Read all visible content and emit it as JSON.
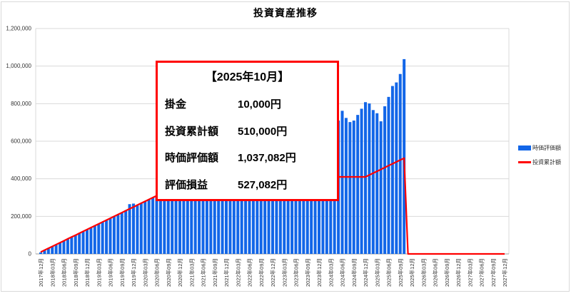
{
  "title": "投資資産推移",
  "colors": {
    "bar": "#1266e8",
    "line": "#ff0000",
    "grid": "#d9d9d9",
    "axis": "#9e9e9e",
    "tick_text": "#333333",
    "frame": "#d9d9d9",
    "box_border": "#ff0000"
  },
  "legend": [
    {
      "label": "時価評価額",
      "type": "bar"
    },
    {
      "label": "投資累計額",
      "type": "line"
    }
  ],
  "annotation": {
    "title": "【2025年10月】",
    "rows": [
      {
        "label": "掛金",
        "value": "10,000円"
      },
      {
        "label": "投資累計額",
        "value": "510,000円"
      },
      {
        "label": "時価評価額",
        "value": "1,037,082円"
      },
      {
        "label": "評価損益",
        "value": "527,082円"
      }
    ]
  },
  "chart_data": {
    "type": "combo",
    "title": "投資資産推移",
    "x_start": "2017-12",
    "x_end": "2027-12",
    "x_interval": "monthly",
    "tick_every_n_months": 3,
    "x_tick_labels": [
      "2017年12月",
      "2018年03月",
      "2018年06月",
      "2018年09月",
      "2018年12月",
      "2019年03月",
      "2019年06月",
      "2019年09月",
      "2019年12月",
      "2020年03月",
      "2020年06月",
      "2020年09月",
      "2020年12月",
      "2021年03月",
      "2021年06月",
      "2021年09月",
      "2021年12月",
      "2022年03月",
      "2022年06月",
      "2022年09月",
      "2022年12月",
      "2023年03月",
      "2023年06月",
      "2023年09月",
      "2023年12月",
      "2024年03月",
      "2024年06月",
      "2024年09月",
      "2024年12月",
      "2025年03月",
      "2025年06月",
      "2025年09月",
      "2025年12月",
      "2026年03月",
      "2026年06月",
      "2026年09月",
      "2026年12月",
      "2027年03月",
      "2027年06月",
      "2027年09月",
      "2027年12月"
    ],
    "ylim": [
      0,
      1200000
    ],
    "y_ticks": [
      "0",
      "200,000",
      "400,000",
      "600,000",
      "800,000",
      "1,000,000",
      "1,200,000"
    ],
    "grid": true,
    "legend_position": "right",
    "series": [
      {
        "name": "時価評価額",
        "type": "bar",
        "color": "#1266e8",
        "values": [
          8000,
          19000,
          30000,
          41000,
          50000,
          61000,
          70000,
          79000,
          91000,
          100000,
          111000,
          119000,
          131000,
          140000,
          149000,
          161000,
          170000,
          179000,
          191000,
          199000,
          210000,
          219000,
          232000,
          265000,
          268000,
          258000,
          270000,
          281000,
          290000,
          299000,
          311000,
          322000,
          330000,
          341000,
          350000,
          360000,
          371000,
          380000,
          391000,
          400000,
          412000,
          420000,
          428000,
          436000,
          444000,
          452000,
          460000,
          455000,
          462000,
          470000,
          478000,
          486000,
          480000,
          488000,
          496000,
          504000,
          512000,
          520000,
          515000,
          523000,
          531000,
          539000,
          547000,
          555000,
          563000,
          571000,
          579000,
          587000,
          595000,
          603000,
          615000,
          628000,
          645000,
          660000,
          690000,
          695000,
          717000,
          710000,
          762000,
          724000,
          702000,
          710000,
          740000,
          773000,
          808000,
          801000,
          766000,
          749000,
          706000,
          786000,
          836000,
          894000,
          913000,
          958000,
          1037082,
          null,
          null,
          null,
          null,
          null,
          null,
          null,
          null,
          null,
          null,
          null,
          null,
          null,
          null,
          null,
          null,
          null,
          null,
          null,
          null,
          null,
          null,
          null,
          null,
          null,
          null
        ]
      },
      {
        "name": "投資累計額",
        "type": "line",
        "color": "#ff0000",
        "values": [
          10000,
          20000,
          30000,
          40000,
          50000,
          60000,
          70000,
          80000,
          90000,
          100000,
          110000,
          120000,
          130000,
          140000,
          150000,
          160000,
          170000,
          180000,
          190000,
          200000,
          210000,
          220000,
          230000,
          240000,
          250000,
          260000,
          270000,
          280000,
          290000,
          300000,
          310000,
          320000,
          330000,
          340000,
          350000,
          360000,
          370000,
          380000,
          390000,
          400000,
          410000,
          410000,
          410000,
          410000,
          410000,
          410000,
          410000,
          410000,
          410000,
          410000,
          410000,
          410000,
          410000,
          410000,
          410000,
          410000,
          410000,
          410000,
          410000,
          410000,
          410000,
          410000,
          410000,
          410000,
          410000,
          410000,
          410000,
          410000,
          410000,
          410000,
          410000,
          410000,
          410000,
          410000,
          410000,
          410000,
          410000,
          410000,
          410000,
          410000,
          410000,
          410000,
          410000,
          410000,
          410000,
          420000,
          430000,
          440000,
          450000,
          460000,
          470000,
          480000,
          490000,
          500000,
          510000,
          0,
          0,
          0,
          0,
          0,
          0,
          0,
          0,
          0,
          0,
          0,
          0,
          0,
          0,
          0,
          0,
          0,
          0,
          0,
          0,
          0,
          0,
          0,
          0,
          0,
          0
        ]
      }
    ]
  }
}
